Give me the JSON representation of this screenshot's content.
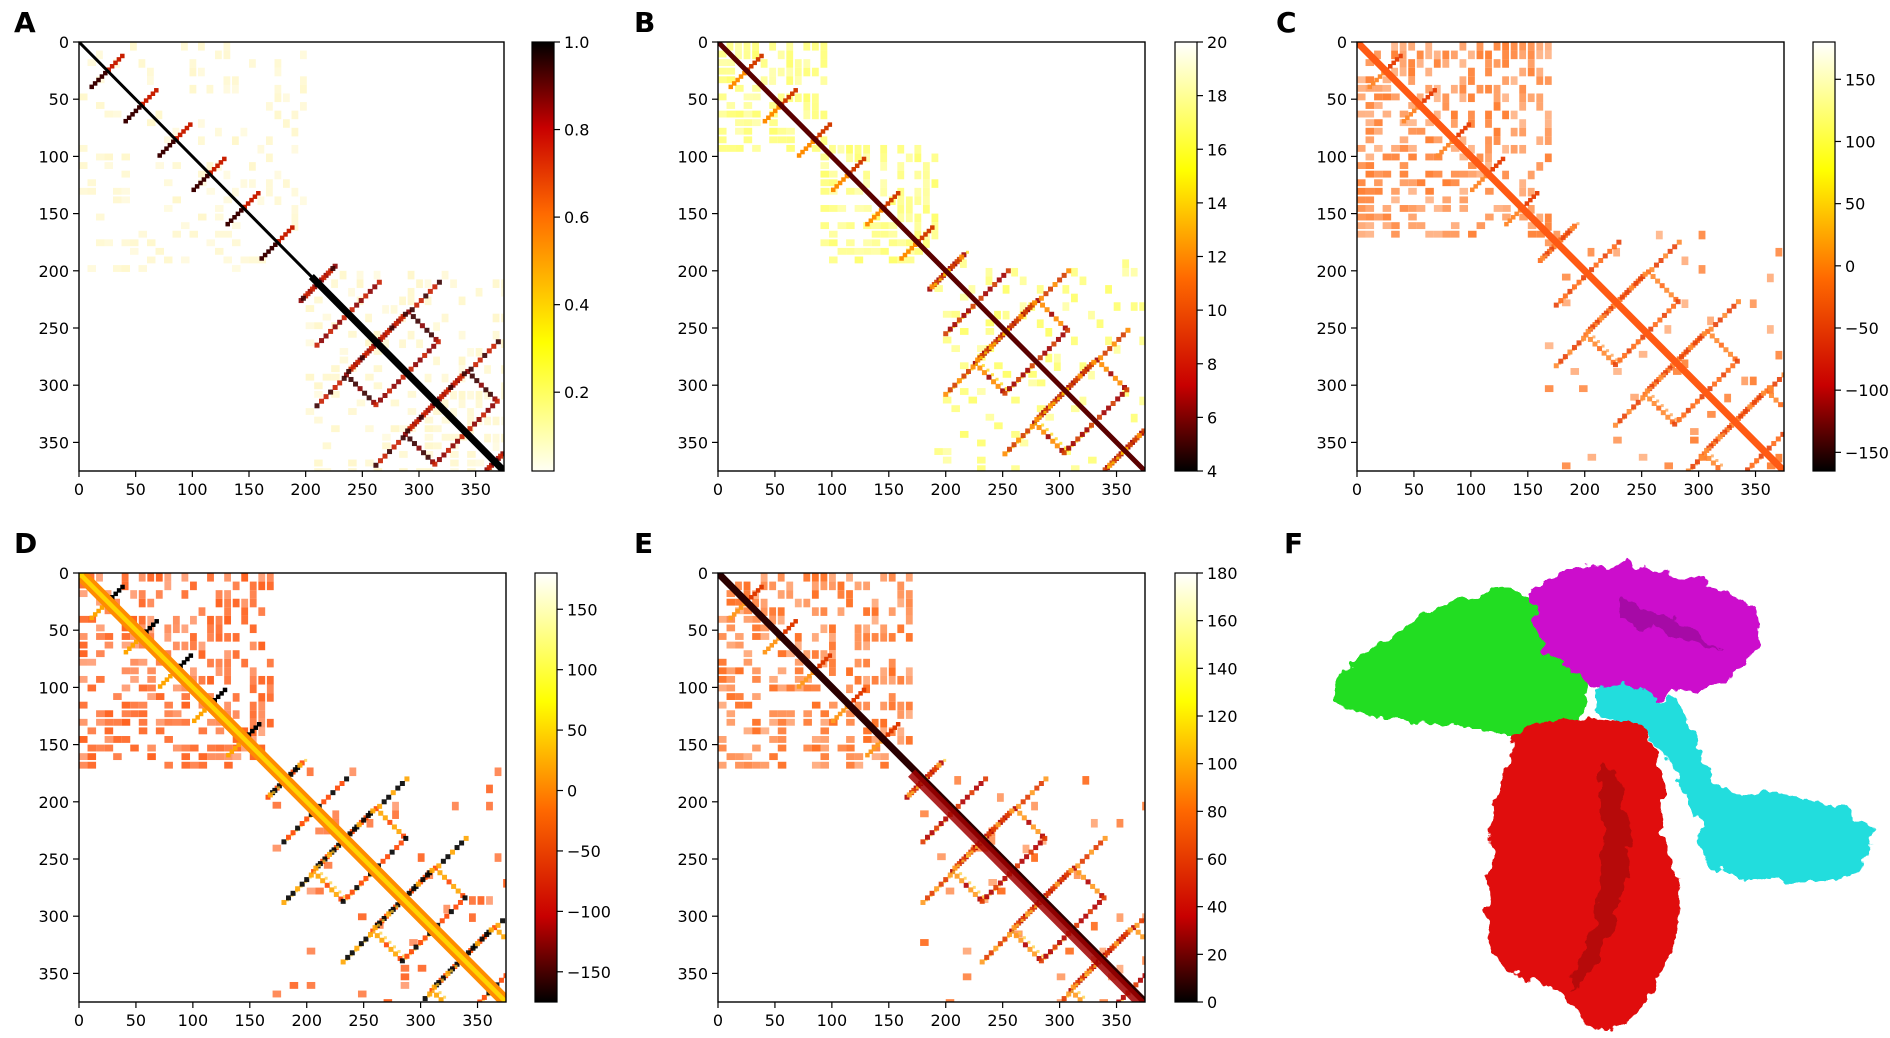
{
  "figure": {
    "description_visible_only": false
  },
  "chart_data": [
    {
      "id": "A",
      "panel_label": "A",
      "type": "heatmap",
      "title": "",
      "xlabel": "",
      "ylabel": "",
      "xlim": [
        0,
        375
      ],
      "ylim": [
        375,
        0
      ],
      "xticks": [
        0,
        50,
        100,
        150,
        200,
        250,
        300,
        350
      ],
      "yticks": [
        0,
        50,
        100,
        150,
        200,
        250,
        300,
        350
      ],
      "colormap": "hot_r",
      "colorbar": {
        "range": [
          0.02,
          1.0
        ],
        "ticks": [
          "0.2",
          "0.4",
          "0.6",
          "0.8",
          "1.0"
        ],
        "tick_values": [
          0.2,
          0.4,
          0.6,
          0.8,
          1.0
        ]
      },
      "domain_blocks": [
        [
          0,
          200
        ],
        [
          200,
          375
        ]
      ],
      "pattern": "sparse_lattice"
    },
    {
      "id": "B",
      "panel_label": "B",
      "type": "heatmap",
      "title": "",
      "xlabel": "",
      "ylabel": "",
      "xlim": [
        0,
        375
      ],
      "ylim": [
        375,
        0
      ],
      "xticks": [
        0,
        50,
        100,
        150,
        200,
        250,
        300,
        350
      ],
      "yticks": [
        0,
        50,
        100,
        150,
        200,
        250,
        300,
        350
      ],
      "colormap": "hot",
      "colorbar": {
        "range": [
          4,
          20
        ],
        "ticks": [
          "4",
          "6",
          "8",
          "10",
          "12",
          "14",
          "16",
          "18",
          "20"
        ],
        "tick_values": [
          4,
          6,
          8,
          10,
          12,
          14,
          16,
          18,
          20
        ]
      },
      "domain_blocks": [
        [
          0,
          90
        ],
        [
          90,
          190
        ],
        [
          190,
          375
        ]
      ],
      "pattern": "dense_lattice"
    },
    {
      "id": "C",
      "panel_label": "C",
      "type": "heatmap",
      "title": "",
      "xlabel": "",
      "ylabel": "",
      "xlim": [
        0,
        375
      ],
      "ylim": [
        375,
        0
      ],
      "xticks": [
        0,
        50,
        100,
        150,
        200,
        250,
        300,
        350
      ],
      "yticks": [
        0,
        50,
        100,
        150,
        200,
        250,
        300,
        350
      ],
      "colormap": "hot",
      "colorbar": {
        "range": [
          -165,
          180
        ],
        "ticks": [
          "−150",
          "−100",
          "−50",
          "0",
          "50",
          "100",
          "150"
        ],
        "tick_values": [
          -150,
          -100,
          -50,
          0,
          50,
          100,
          150
        ]
      },
      "domain_blocks": [
        [
          0,
          165
        ],
        [
          165,
          375
        ]
      ],
      "pattern": "angle_lattice"
    },
    {
      "id": "D",
      "panel_label": "D",
      "type": "heatmap",
      "title": "",
      "xlabel": "",
      "ylabel": "",
      "xlim": [
        0,
        375
      ],
      "ylim": [
        375,
        0
      ],
      "xticks": [
        0,
        50,
        100,
        150,
        200,
        250,
        300,
        350
      ],
      "yticks": [
        0,
        50,
        100,
        150,
        200,
        250,
        300,
        350
      ],
      "colormap": "hot",
      "colorbar": {
        "range": [
          -175,
          180
        ],
        "ticks": [
          "−150",
          "−100",
          "−50",
          "0",
          "50",
          "100",
          "150"
        ],
        "tick_values": [
          -150,
          -100,
          -50,
          0,
          50,
          100,
          150
        ]
      },
      "domain_blocks": [
        [
          0,
          170
        ],
        [
          170,
          375
        ]
      ],
      "pattern": "angle_lattice_banded"
    },
    {
      "id": "E",
      "panel_label": "E",
      "type": "heatmap",
      "title": "",
      "xlabel": "",
      "ylabel": "",
      "xlim": [
        0,
        375
      ],
      "ylim": [
        375,
        0
      ],
      "xticks": [
        0,
        50,
        100,
        150,
        200,
        250,
        300,
        350
      ],
      "yticks": [
        0,
        50,
        100,
        150,
        200,
        250,
        300,
        350
      ],
      "colormap": "hot",
      "colorbar": {
        "range": [
          0,
          180
        ],
        "ticks": [
          "0",
          "20",
          "40",
          "60",
          "80",
          "100",
          "120",
          "140",
          "160",
          "180"
        ],
        "tick_values": [
          0,
          20,
          40,
          60,
          80,
          100,
          120,
          140,
          160,
          180
        ]
      },
      "domain_blocks": [
        [
          0,
          170
        ],
        [
          170,
          375
        ]
      ],
      "pattern": "angle_lattice_dark"
    }
  ],
  "panel_f": {
    "panel_label": "F",
    "type": "molecular_surface",
    "domain_colors": {
      "green": "#22dd22",
      "magenta": "#cc11cc",
      "cyan": "#22dddd",
      "red": "#e01010"
    }
  },
  "colors": {
    "axis": "#000000",
    "background": "#ffffff"
  }
}
